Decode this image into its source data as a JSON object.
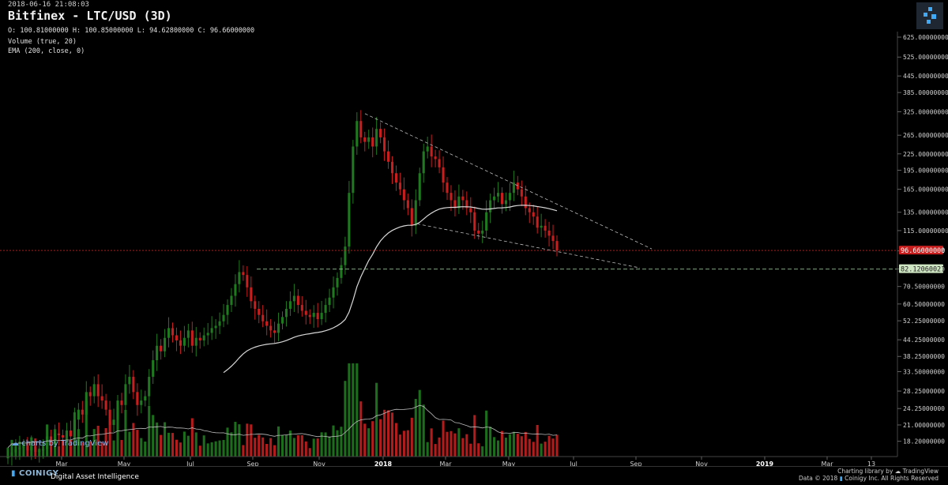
{
  "header": {
    "timestamp": "2018-06-16 21:08:03",
    "title": "Bitfinex - LTC/USD (3D)",
    "ohlc": "O: 100.81000000 H: 100.85000000 L: 94.62800000 C: 96.66000000",
    "indicator_volume": "Volume (true, 20)",
    "indicator_ema": "EMA (200, close, 0)"
  },
  "branding": {
    "tradingview": "charts by TradingView",
    "coinigy": "COINIGY",
    "tagline": "Digital Asset Intelligence",
    "charting_library": "Charting library by",
    "charting_brand": "TradingView",
    "data_credit": "Data © 2018",
    "copyright": "Coinigy Inc. All Rights Reserved"
  },
  "colors": {
    "up": "#1f7a1f",
    "down": "#c81e1e",
    "ema": "#d8d8d8",
    "last_price_line": "#c81e1e",
    "support_line": "#8fbf8f",
    "accent_logo": "#3fa9f5"
  },
  "chart_data": {
    "type": "candlestick",
    "scale": "log",
    "y_ticks": [
      "18.20000000",
      "21.00000000",
      "24.25000000",
      "28.25000000",
      "33.50000000",
      "38.25000000",
      "44.25000000",
      "52.25000000",
      "60.50000000",
      "70.50000000",
      "82.25000000",
      "96.25000000",
      "115.00000000",
      "135.00000000",
      "165.00000000",
      "195.00000000",
      "225.00000000",
      "265.00000000",
      "325.00000000",
      "385.00000000",
      "445.00000000",
      "525.00000000",
      "625.00000000"
    ],
    "x_ticks": [
      "Mar",
      "May",
      "Jul",
      "Sep",
      "Nov",
      "2018",
      "Mar",
      "May",
      "Jul",
      "Sep",
      "Nov",
      "2019",
      "Mar",
      "13"
    ],
    "last_price": 96.66,
    "last_price_label": "96.66000000",
    "support_level": 82.1206,
    "support_label": "82.12060021",
    "trend_upper": [
      [
        320,
        "2017-12-13"
      ],
      [
        98,
        "2018-09-20"
      ]
    ],
    "trend_lower": [
      [
        122,
        "2018-02-06"
      ],
      [
        83,
        "2018-09-18"
      ]
    ],
    "close_series": [
      16,
      16.5,
      17,
      17.2,
      17.5,
      16.8,
      17.4,
      16.6,
      16.8,
      17,
      19,
      18,
      19.5,
      19.2,
      18.8,
      20,
      19,
      22,
      24,
      23,
      28,
      27,
      30,
      27,
      26,
      24,
      21,
      22,
      26,
      25,
      30,
      32,
      28,
      25,
      26,
      27,
      32,
      37,
      42,
      40,
      45,
      49,
      46,
      44,
      42,
      45,
      48,
      42,
      45,
      44,
      46,
      47,
      49,
      50,
      52,
      55,
      60,
      65,
      72,
      80,
      78,
      70,
      62,
      58,
      55,
      52,
      50,
      48,
      47,
      51,
      54,
      58,
      62,
      65,
      60,
      57,
      55,
      54,
      56,
      53,
      56,
      60,
      64,
      70,
      76,
      85,
      100,
      160,
      240,
      300,
      260,
      250,
      260,
      240,
      280,
      260,
      230,
      210,
      190,
      175,
      165,
      150,
      140,
      120,
      150,
      190,
      230,
      240,
      220,
      215,
      200,
      175,
      160,
      150,
      140,
      155,
      150,
      140,
      135,
      115,
      112,
      115,
      135,
      150,
      155,
      160,
      145,
      150,
      160,
      175,
      165,
      155,
      140,
      135,
      130,
      118,
      120,
      115,
      110,
      105,
      96.66
    ]
  }
}
